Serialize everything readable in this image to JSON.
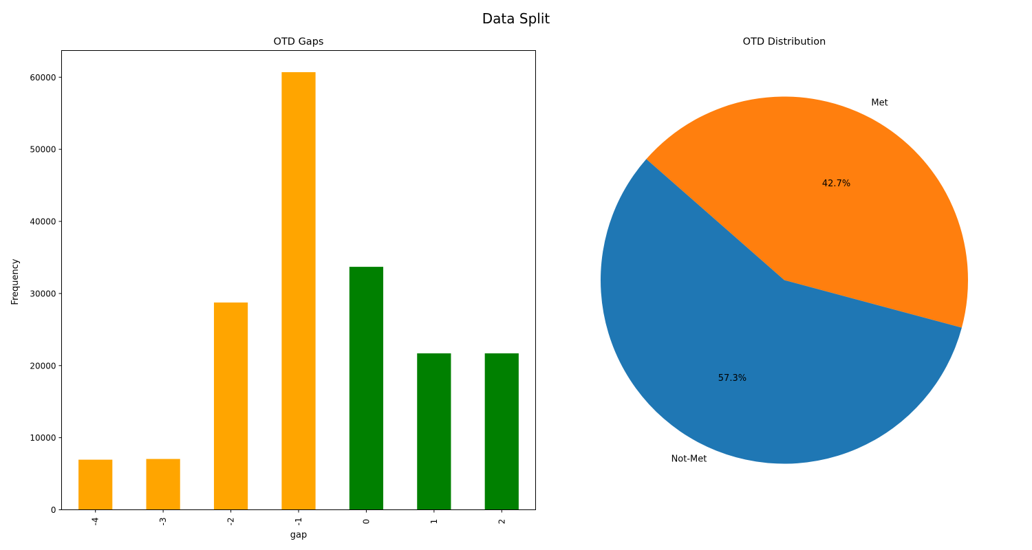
{
  "figure": {
    "title": "Data Split"
  },
  "chart_data": [
    {
      "type": "bar",
      "title": "OTD Gaps",
      "xlabel": "gap",
      "ylabel": "Frequency",
      "categories": [
        "-4",
        "-3",
        "-2",
        "-1",
        "0",
        "1",
        "2"
      ],
      "values": [
        6950,
        7050,
        28750,
        60700,
        33700,
        21700,
        21700
      ],
      "bar_colors": [
        "#ffa500",
        "#ffa500",
        "#ffa500",
        "#ffa500",
        "#008000",
        "#008000",
        "#008000"
      ],
      "ylim": [
        0,
        63700
      ],
      "yticks": [
        0,
        10000,
        20000,
        30000,
        40000,
        50000,
        60000
      ],
      "grid": false
    },
    {
      "type": "pie",
      "title": "OTD Distribution",
      "slices": [
        {
          "label": "Met",
          "value": 42.7,
          "pct_label": "42.7%",
          "color": "#ff7f0e"
        },
        {
          "label": "Not-Met",
          "value": 57.3,
          "pct_label": "57.3%",
          "color": "#1f77b4"
        }
      ]
    }
  ]
}
